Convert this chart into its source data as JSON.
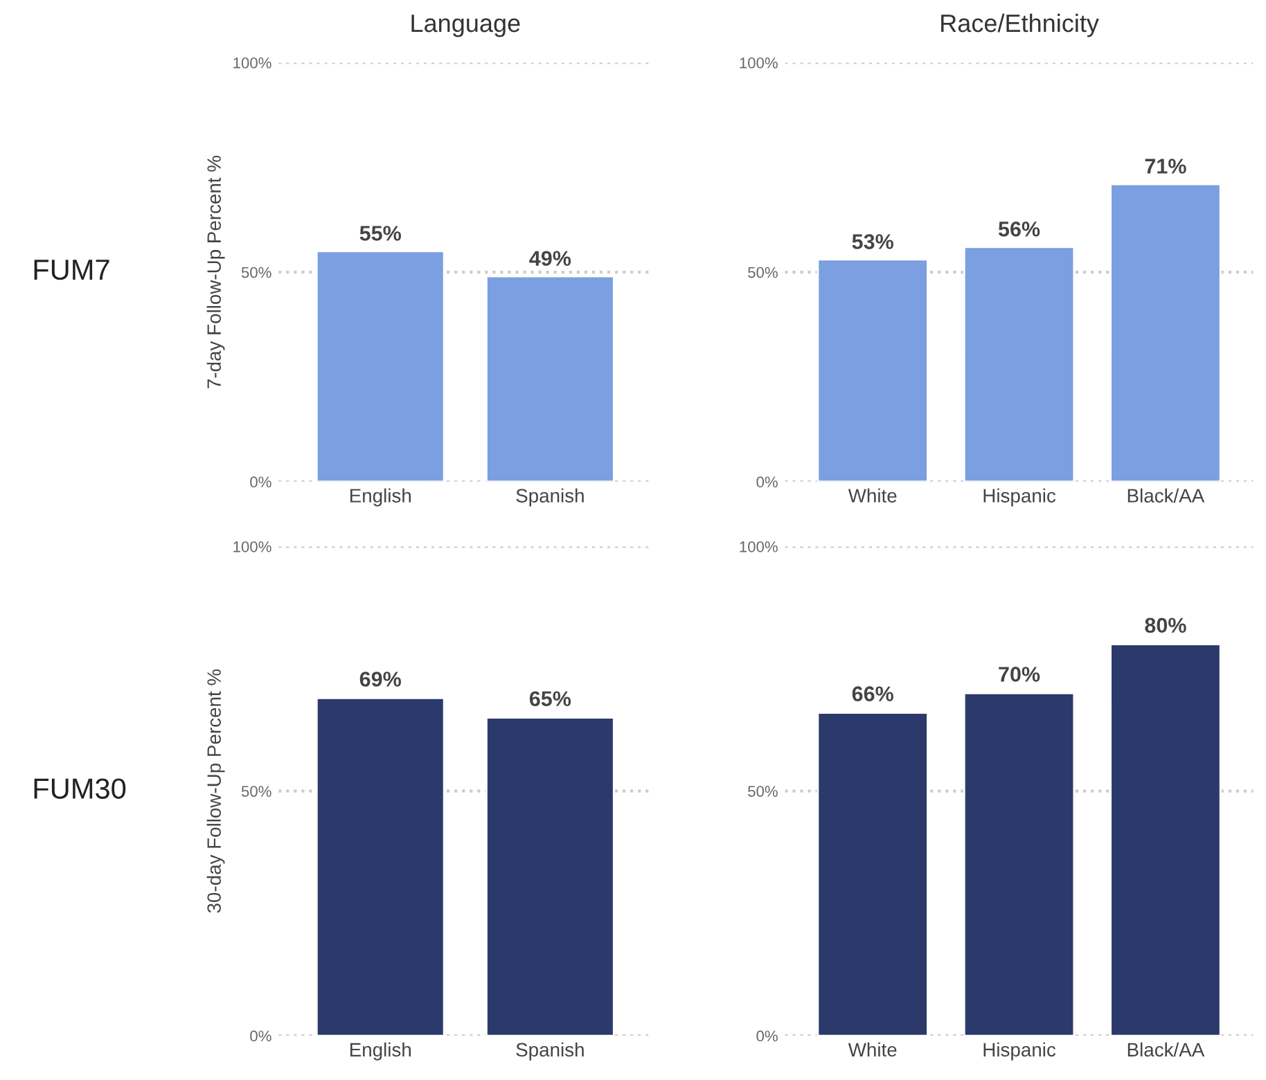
{
  "chart_data": [
    {
      "type": "bar",
      "title": "Language",
      "ylabel": "7-day Follow-Up Percent %",
      "annotations": [
        "FUM7"
      ],
      "categories": [
        "English",
        "Spanish"
      ],
      "values": [
        55,
        49
      ],
      "value_labels": [
        "55%",
        "49%"
      ],
      "color": "#7b9fe0",
      "ylim": [
        0,
        100
      ],
      "yticks": [
        {
          "value": 0,
          "label": "0%"
        },
        {
          "value": 50,
          "label": "50%"
        },
        {
          "value": 100,
          "label": "100%"
        }
      ],
      "grid": "y"
    },
    {
      "type": "bar",
      "title": "Race/Ethnicity",
      "categories": [
        "White",
        "Hispanic",
        "Black/AA"
      ],
      "values": [
        53,
        56,
        71
      ],
      "value_labels": [
        "53%",
        "56%",
        "71%"
      ],
      "color": "#7b9fe0",
      "ylim": [
        0,
        100
      ],
      "yticks": [
        {
          "value": 0,
          "label": "0%"
        },
        {
          "value": 50,
          "label": "50%"
        },
        {
          "value": 100,
          "label": "100%"
        }
      ],
      "grid": "y"
    },
    {
      "type": "bar",
      "ylabel": "30-day Follow-Up Percent %",
      "annotations": [
        "FUM30"
      ],
      "categories": [
        "English",
        "Spanish"
      ],
      "values": [
        69,
        65
      ],
      "value_labels": [
        "69%",
        "65%"
      ],
      "color": "#2b3a6b",
      "ylim": [
        0,
        100
      ],
      "yticks": [
        {
          "value": 0,
          "label": "0%"
        },
        {
          "value": 50,
          "label": "50%"
        },
        {
          "value": 100,
          "label": "100%"
        }
      ],
      "grid": "y"
    },
    {
      "type": "bar",
      "categories": [
        "White",
        "Hispanic",
        "Black/AA"
      ],
      "values": [
        66,
        70,
        80
      ],
      "value_labels": [
        "66%",
        "70%",
        "80%"
      ],
      "color": "#2b3a6b",
      "ylim": [
        0,
        100
      ],
      "yticks": [
        {
          "value": 0,
          "label": "0%"
        },
        {
          "value": 50,
          "label": "50%"
        },
        {
          "value": 100,
          "label": "100%"
        }
      ],
      "grid": "y"
    }
  ]
}
